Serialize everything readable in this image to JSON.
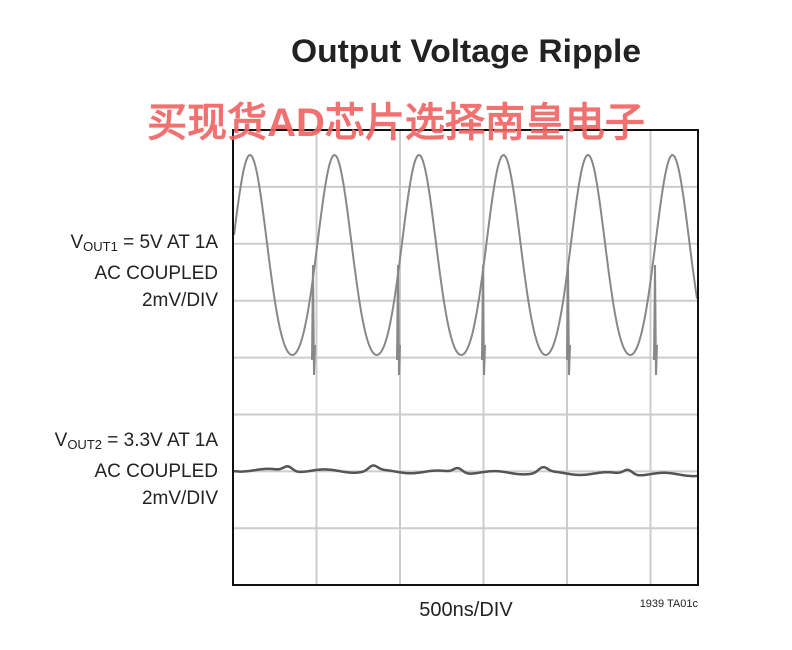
{
  "header": {
    "title": "Output Voltage Ripple",
    "watermark": "买现货AD芯片选择南皇电子"
  },
  "traces": [
    {
      "label": {
        "symbol": "V",
        "subscript": "OUT1",
        "rest": " = 5V AT 1A",
        "coupling": "AC COUPLED",
        "scale": "2mV/DIV"
      }
    },
    {
      "label": {
        "symbol": "V",
        "subscript": "OUT2",
        "rest": " = 3.3V AT 1A",
        "coupling": "AC COUPLED",
        "scale": "2mV/DIV"
      }
    }
  ],
  "footer": {
    "x_scale": "500ns/DIV",
    "figure_code": "1939 TA01c"
  }
}
